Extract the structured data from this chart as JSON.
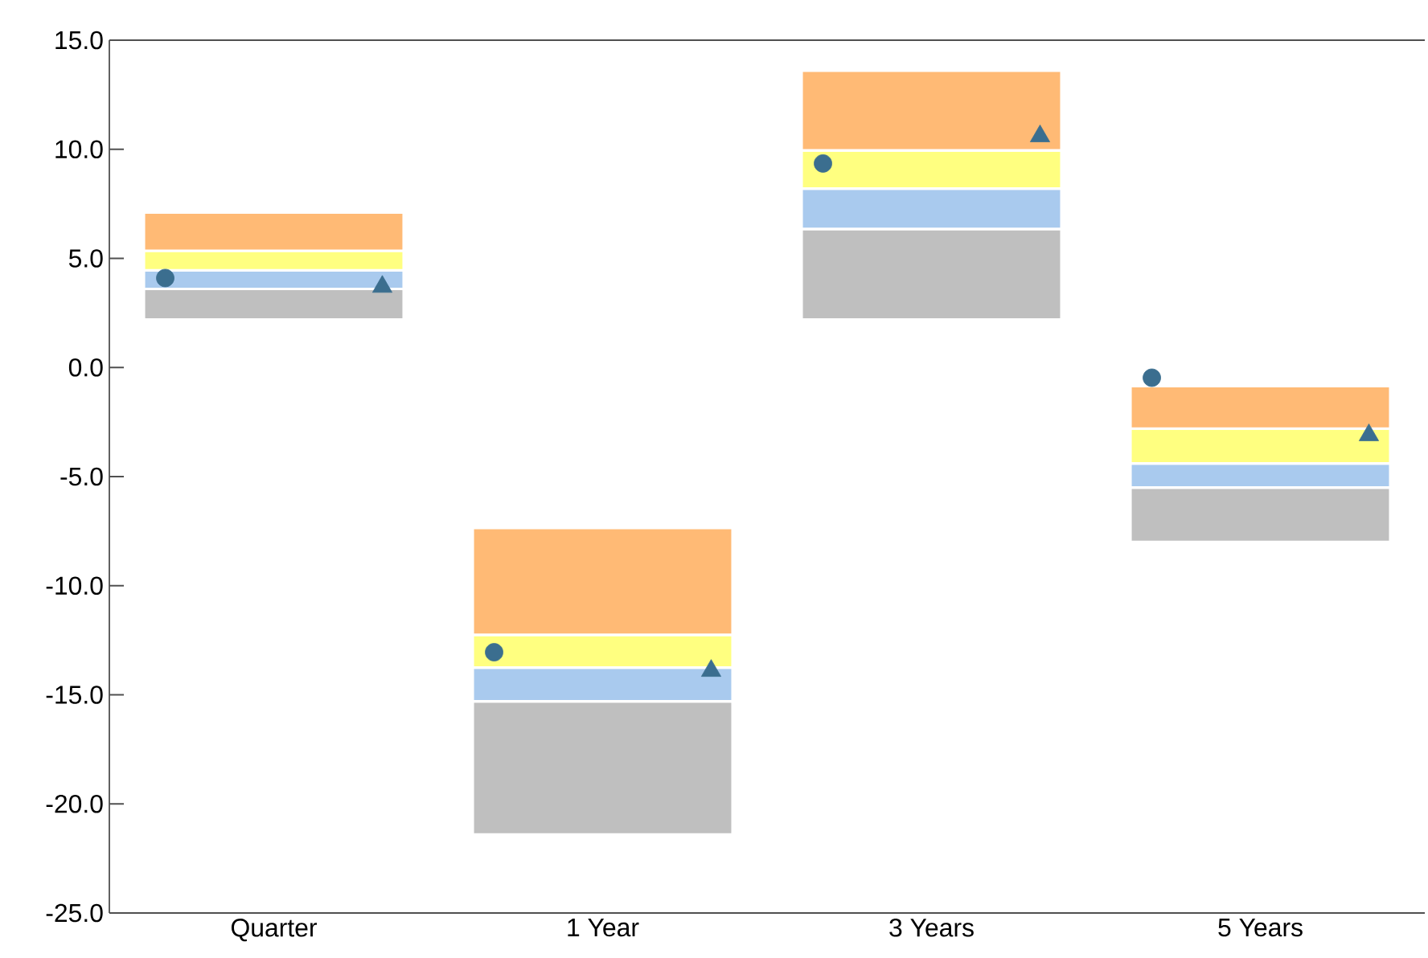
{
  "chart_data": {
    "type": "bar",
    "categories": [
      "Quarter",
      "1 Year",
      "3 Years",
      "5 Years"
    ],
    "ylim": [
      -25,
      15
    ],
    "yticks": [
      {
        "value": -25,
        "label": "-25.0"
      },
      {
        "value": -20,
        "label": "-20.0"
      },
      {
        "value": -15,
        "label": "-15.0"
      },
      {
        "value": -10,
        "label": "-10.0"
      },
      {
        "value": -5,
        "label": "-5.0"
      },
      {
        "value": 0,
        "label": "0.0"
      },
      {
        "value": 5,
        "label": "5.0"
      },
      {
        "value": 10,
        "label": "10.0"
      },
      {
        "value": 15,
        "label": "15.0"
      }
    ],
    "grid": false,
    "series": [
      {
        "color": "#bfbfbf",
        "base": [
          2.2,
          -21.4,
          2.2,
          -8.0
        ],
        "values": [
          1.4,
          6.1,
          4.15,
          2.5
        ]
      },
      {
        "color": "#a9caee",
        "base": [
          3.6,
          -15.3,
          6.35,
          -5.5
        ],
        "values": [
          0.85,
          1.55,
          1.85,
          1.1
        ]
      },
      {
        "color": "#ffff80",
        "base": [
          4.45,
          -13.75,
          8.2,
          -4.4
        ],
        "values": [
          0.9,
          1.5,
          1.75,
          1.6
        ]
      },
      {
        "color": "#ffba75",
        "base": [
          5.35,
          -12.25,
          9.95,
          -2.8
        ],
        "values": [
          1.75,
          4.9,
          3.65,
          1.95
        ]
      },
      {
        "type": "scatter",
        "marker": "circle",
        "color": "#3b6e8f",
        "x": [
          "Quarter",
          "1 Year",
          "3 Years",
          "5 Years"
        ],
        "values": [
          4.1,
          -13.05,
          9.35,
          -0.47
        ]
      },
      {
        "type": "scatter",
        "marker": "triangle",
        "color": "#3b6e8f",
        "x": [
          "Quarter",
          "1 Year",
          "3 Years",
          "5 Years"
        ],
        "values": [
          3.7,
          -13.9,
          10.6,
          -3.1
        ]
      }
    ]
  }
}
